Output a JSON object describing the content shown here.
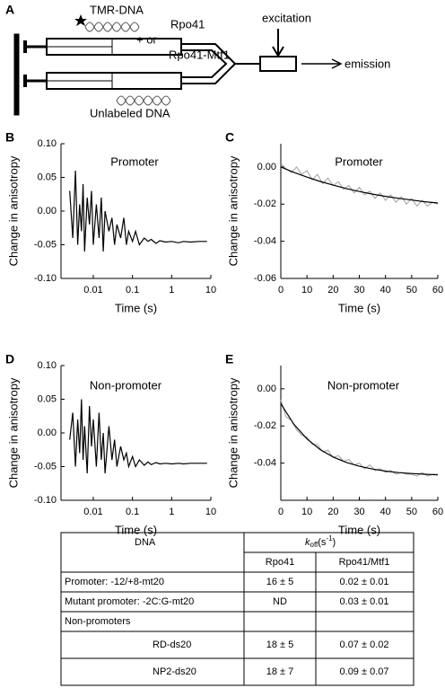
{
  "diagram": {
    "panel": "A",
    "labels": {
      "labeled": "TMR-DNA",
      "plus_or": "+ or",
      "enzyme1": "Rpo41",
      "enzyme2": "Rpo41-Mtf1",
      "excitation": "excitation",
      "emission": "emission",
      "unlabeled": "Unlabeled DNA"
    }
  },
  "chart_data": [
    {
      "type": "line",
      "panel": "B",
      "annotation": "Promoter",
      "xlabel": "Time (s)",
      "ylabel": "Change in anisotropy",
      "xscale": "log",
      "xlim": [
        0.0015,
        10
      ],
      "xticks": [
        0.01,
        0.1,
        1,
        10
      ],
      "ylim": [
        -0.1,
        0.1
      ],
      "yticks": [
        {
          "value": 0.1,
          "label": "0.10"
        },
        {
          "value": 0.05,
          "label": "0.05"
        },
        {
          "value": 0,
          "label": "0.00"
        },
        {
          "value": -0.05,
          "label": "-0.05"
        },
        {
          "value": -0.1,
          "label": "-0.10"
        }
      ],
      "series": [
        {
          "color": "#000000",
          "x": [
            0.0025,
            0.003,
            0.0035,
            0.004,
            0.0045,
            0.005,
            0.0055,
            0.006,
            0.007,
            0.008,
            0.009,
            0.01,
            0.012,
            0.014,
            0.016,
            0.018,
            0.02,
            0.025,
            0.03,
            0.035,
            0.04,
            0.05,
            0.06,
            0.07,
            0.08,
            0.1,
            0.12,
            0.15,
            0.2,
            0.25,
            0.3,
            0.4,
            0.5,
            0.7,
            1,
            1.5,
            2,
            3,
            5,
            8
          ],
          "values": [
            0.03,
            -0.04,
            0.06,
            -0.05,
            0.01,
            -0.03,
            0.04,
            -0.06,
            0.02,
            -0.02,
            0.03,
            -0.05,
            0.01,
            -0.04,
            0.02,
            -0.06,
            0.0,
            -0.03,
            -0.01,
            -0.05,
            -0.02,
            -0.04,
            -0.01,
            -0.05,
            -0.03,
            -0.045,
            -0.03,
            -0.05,
            -0.04,
            -0.045,
            -0.042,
            -0.048,
            -0.044,
            -0.046,
            -0.045,
            -0.047,
            -0.045,
            -0.046,
            -0.045,
            -0.045
          ]
        }
      ]
    },
    {
      "type": "line",
      "panel": "C",
      "annotation": "Promoter",
      "xlabel": "Time (s)",
      "ylabel": "Change in anisotropy",
      "xscale": "linear",
      "xlim": [
        0,
        60
      ],
      "xticks": [
        0,
        10,
        20,
        30,
        40,
        50,
        60
      ],
      "ylim": [
        -0.06,
        0.0125
      ],
      "yticks": [
        {
          "value": 0,
          "label": "0.00"
        },
        {
          "value": -0.02,
          "label": "-0.02"
        },
        {
          "value": -0.04,
          "label": "-0.04"
        },
        {
          "value": -0.06,
          "label": "-0.06"
        }
      ],
      "series": [
        {
          "color": "#a0a0a0",
          "x": [
            0,
            2,
            4,
            6,
            8,
            10,
            12,
            14,
            16,
            18,
            20,
            22,
            24,
            26,
            28,
            30,
            32,
            34,
            36,
            38,
            40,
            42,
            44,
            46,
            48,
            50,
            52,
            54,
            56,
            58,
            60
          ],
          "values": [
            0.002,
            -0.001,
            -0.003,
            0.0,
            -0.004,
            -0.002,
            -0.007,
            -0.004,
            -0.009,
            -0.006,
            -0.01,
            -0.008,
            -0.012,
            -0.01,
            -0.014,
            -0.011,
            -0.015,
            -0.013,
            -0.017,
            -0.014,
            -0.018,
            -0.015,
            -0.019,
            -0.016,
            -0.02,
            -0.017,
            -0.021,
            -0.018,
            -0.021,
            -0.019,
            -0.02
          ]
        },
        {
          "color": "#000000",
          "x": [
            0,
            5,
            10,
            15,
            20,
            25,
            30,
            35,
            40,
            45,
            50,
            55,
            60
          ],
          "values": [
            0,
            -0.0029,
            -0.0055,
            -0.0078,
            -0.0098,
            -0.0116,
            -0.0132,
            -0.0146,
            -0.0158,
            -0.0169,
            -0.0178,
            -0.0187,
            -0.0194
          ]
        }
      ]
    },
    {
      "type": "line",
      "panel": "D",
      "annotation": "Non-promoter",
      "xlabel": "Time (s)",
      "ylabel": "Change in anisotropy",
      "xscale": "log",
      "xlim": [
        0.0015,
        10
      ],
      "xticks": [
        0.01,
        0.1,
        1,
        10
      ],
      "ylim": [
        -0.1,
        0.1
      ],
      "yticks": [
        {
          "value": 0.1,
          "label": "0.10"
        },
        {
          "value": 0.05,
          "label": "0.05"
        },
        {
          "value": 0,
          "label": "0.00"
        },
        {
          "value": -0.05,
          "label": "-0.05"
        },
        {
          "value": -0.1,
          "label": "-0.10"
        }
      ],
      "series": [
        {
          "color": "#000000",
          "x": [
            0.0025,
            0.003,
            0.0035,
            0.004,
            0.0045,
            0.005,
            0.0055,
            0.006,
            0.007,
            0.008,
            0.009,
            0.01,
            0.012,
            0.014,
            0.016,
            0.018,
            0.02,
            0.025,
            0.03,
            0.035,
            0.04,
            0.05,
            0.06,
            0.07,
            0.08,
            0.1,
            0.12,
            0.15,
            0.2,
            0.25,
            0.3,
            0.4,
            0.5,
            0.7,
            1,
            1.5,
            2,
            3,
            5,
            8
          ],
          "values": [
            -0.01,
            0.03,
            -0.05,
            0.02,
            -0.03,
            0.05,
            -0.04,
            0.01,
            -0.06,
            0.04,
            -0.02,
            0.02,
            -0.05,
            0.03,
            -0.04,
            0.0,
            -0.06,
            0.01,
            -0.04,
            -0.01,
            -0.05,
            -0.02,
            -0.04,
            -0.03,
            -0.05,
            -0.035,
            -0.05,
            -0.04,
            -0.048,
            -0.043,
            -0.047,
            -0.044,
            -0.046,
            -0.045,
            -0.046,
            -0.045,
            -0.046,
            -0.045,
            -0.045,
            -0.045
          ]
        }
      ]
    },
    {
      "type": "line",
      "panel": "E",
      "annotation": "Non-promoter",
      "xlabel": "Time (s)",
      "ylabel": "Change in anisotropy",
      "xscale": "linear",
      "xlim": [
        0,
        60
      ],
      "xticks": [
        0,
        10,
        20,
        30,
        40,
        50,
        60
      ],
      "ylim": [
        -0.06,
        0.0125
      ],
      "yticks": [
        {
          "value": 0,
          "label": "0.00"
        },
        {
          "value": -0.02,
          "label": "-0.02"
        },
        {
          "value": -0.04,
          "label": "-0.04"
        }
      ],
      "series": [
        {
          "color": "#a0a0a0",
          "x": [
            0,
            2,
            4,
            6,
            8,
            10,
            12,
            14,
            16,
            18,
            20,
            22,
            24,
            26,
            28,
            30,
            32,
            34,
            36,
            38,
            40,
            42,
            44,
            46,
            48,
            50,
            52,
            54,
            56,
            58,
            60
          ],
          "values": [
            -0.006,
            -0.015,
            -0.017,
            -0.022,
            -0.025,
            -0.026,
            -0.03,
            -0.03,
            -0.034,
            -0.033,
            -0.037,
            -0.036,
            -0.039,
            -0.038,
            -0.041,
            -0.04,
            -0.043,
            -0.041,
            -0.044,
            -0.043,
            -0.045,
            -0.044,
            -0.046,
            -0.045,
            -0.046,
            -0.046,
            -0.047,
            -0.045,
            -0.047,
            -0.046,
            -0.046
          ]
        },
        {
          "color": "#000000",
          "x": [
            0,
            5,
            10,
            15,
            20,
            25,
            30,
            35,
            40,
            45,
            50,
            55,
            60
          ],
          "values": [
            -0.008,
            -0.0191,
            -0.027,
            -0.0327,
            -0.0367,
            -0.0396,
            -0.0417,
            -0.0432,
            -0.0443,
            -0.0451,
            -0.0456,
            -0.046,
            -0.0463
          ]
        }
      ]
    }
  ],
  "table": {
    "header": {
      "dna": "DNA",
      "k": "k",
      "sub": "off",
      "unit_open": "(s",
      "sup": "-1",
      "unit_close": ")"
    },
    "subheader": [
      "Rpo41",
      "Rpo41/Mtf1"
    ],
    "rows": [
      [
        "Promoter: -12/+8-mt20",
        "16 ± 5",
        "0.02 ± 0.01"
      ],
      [
        "Mutant promoter: -2C:G-mt20",
        "ND",
        "0.03 ± 0.01"
      ],
      [
        "Non-promoters",
        "",
        ""
      ],
      [
        "RD-ds20",
        "18 ± 5",
        "0.07 ± 0.02"
      ],
      [
        "NP2-ds20",
        "18 ± 7",
        "0.09 ± 0.07"
      ]
    ]
  }
}
